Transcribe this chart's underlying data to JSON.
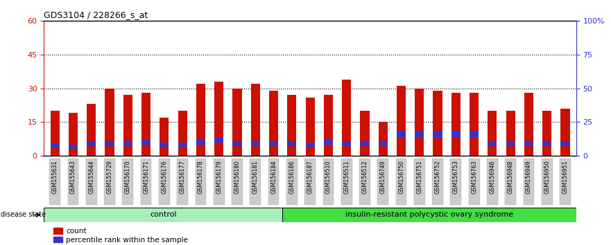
{
  "title": "GDS3104 / 228266_s_at",
  "samples": [
    "GSM155631",
    "GSM155643",
    "GSM155644",
    "GSM155729",
    "GSM156170",
    "GSM156171",
    "GSM156176",
    "GSM156177",
    "GSM156178",
    "GSM156179",
    "GSM156180",
    "GSM156181",
    "GSM156184",
    "GSM156186",
    "GSM156187",
    "GSM156510",
    "GSM156511",
    "GSM156512",
    "GSM156749",
    "GSM156750",
    "GSM156751",
    "GSM156752",
    "GSM156753",
    "GSM156763",
    "GSM156946",
    "GSM156948",
    "GSM156949",
    "GSM156950",
    "GSM156951"
  ],
  "count_values": [
    20,
    19,
    23,
    30,
    27,
    28,
    17,
    20,
    32,
    33,
    30,
    32,
    29,
    27,
    26,
    27,
    34,
    20,
    15,
    31,
    30,
    29,
    28,
    28,
    20,
    20,
    28,
    20,
    21
  ],
  "blue_bottom": [
    3.5,
    3.0,
    4.5,
    4.5,
    4.5,
    5.0,
    4.0,
    4.0,
    5.0,
    6.0,
    4.5,
    4.5,
    4.5,
    4.5,
    4.0,
    5.0,
    4.5,
    4.5,
    4.5,
    8.0,
    8.0,
    8.0,
    8.0,
    8.0,
    4.5,
    4.5,
    4.5,
    4.5,
    4.5
  ],
  "blue_height": [
    2.0,
    2.0,
    2.0,
    2.0,
    2.0,
    2.0,
    2.0,
    2.0,
    2.0,
    2.0,
    2.0,
    2.0,
    2.0,
    2.0,
    2.0,
    2.0,
    2.0,
    2.0,
    2.0,
    3.0,
    3.0,
    3.0,
    3.0,
    3.0,
    2.0,
    2.0,
    2.0,
    2.0,
    2.0
  ],
  "control_count": 13,
  "group_labels": [
    "control",
    "insulin-resistant polycystic ovary syndrome"
  ],
  "disease_state_label": "disease state",
  "bar_color": "#CC1100",
  "percentile_color": "#3333CC",
  "background_color": "#FFFFFF",
  "plot_bg_color": "#FFFFFF",
  "tick_label_bg": "#C8C8C8",
  "left_axis_color": "#CC1100",
  "right_axis_color": "#3333CC",
  "ylim_left": [
    0,
    60
  ],
  "ylim_right": [
    0,
    100
  ],
  "yticks_left": [
    0,
    15,
    30,
    45,
    60
  ],
  "yticks_right": [
    0,
    25,
    50,
    75,
    100
  ],
  "ytick_labels_left": [
    "0",
    "15",
    "30",
    "45",
    "60"
  ],
  "ytick_labels_right": [
    "0",
    "25",
    "50",
    "75",
    "100%"
  ],
  "ytick_label_top_right": "100%",
  "legend_count_label": "count",
  "legend_percentile_label": "percentile rank within the sample",
  "control_color": "#AAEEBB",
  "disease_color": "#44DD44",
  "bar_width": 0.5
}
